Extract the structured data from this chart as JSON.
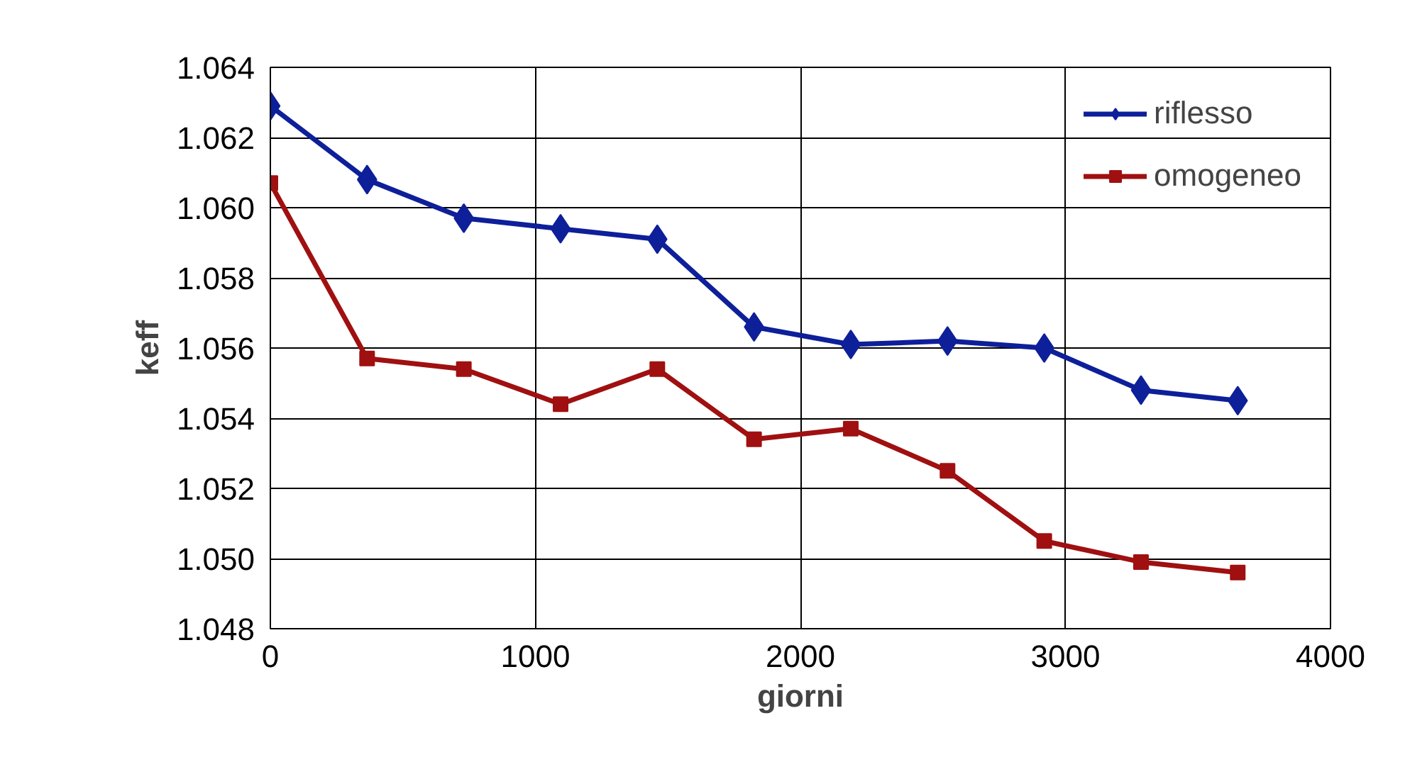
{
  "chart_data": {
    "type": "line",
    "xlabel": "giorni",
    "ylabel": "keff",
    "x": [
      0,
      365,
      730,
      1095,
      1460,
      1825,
      2190,
      2555,
      2920,
      3285,
      3650
    ],
    "series": [
      {
        "name": "riflesso",
        "color": "#0e1f9a",
        "marker": "diamond",
        "values": [
          1.0629,
          1.0608,
          1.0597,
          1.0594,
          1.0591,
          1.0566,
          1.0561,
          1.0562,
          1.056,
          1.0548,
          1.0545
        ]
      },
      {
        "name": "omogeneo",
        "color": "#a01010",
        "marker": "square",
        "values": [
          1.0607,
          1.0557,
          1.0554,
          1.0544,
          1.0554,
          1.0534,
          1.0537,
          1.0525,
          1.0505,
          1.0499,
          1.0496
        ]
      }
    ],
    "xlim": [
      0,
      4000
    ],
    "xticks": [
      0,
      1000,
      2000,
      3000,
      4000
    ],
    "ylim": [
      1.048,
      1.064
    ],
    "yticks": [
      {
        "value": 1.048,
        "label": "1.048"
      },
      {
        "value": 1.05,
        "label": "1.050"
      },
      {
        "value": 1.052,
        "label": "1.052"
      },
      {
        "value": 1.054,
        "label": "1.054"
      },
      {
        "value": 1.056,
        "label": "1.056"
      },
      {
        "value": 1.058,
        "label": "1.058"
      },
      {
        "value": 1.06,
        "label": "1.060"
      },
      {
        "value": 1.062,
        "label": "1.062"
      },
      {
        "value": 1.064,
        "label": "1.064"
      }
    ],
    "grid": true,
    "legend": "top right",
    "line_style": "solid"
  }
}
